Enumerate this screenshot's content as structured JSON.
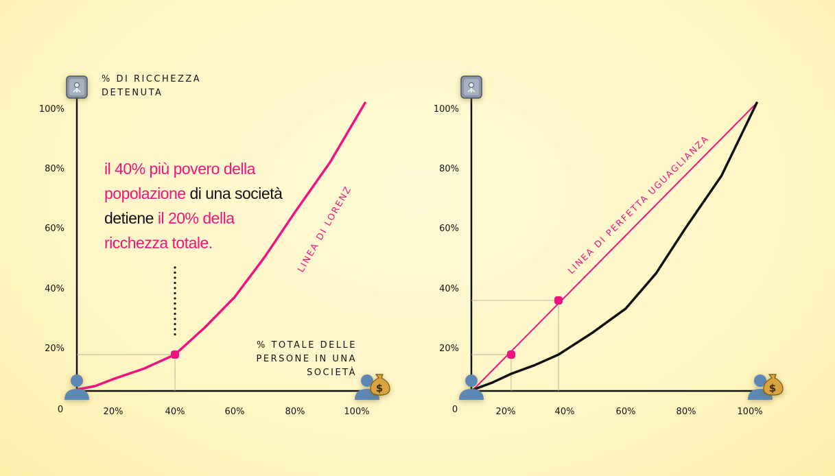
{
  "colors": {
    "accent": "#f0137f",
    "axis": "#111111",
    "guide": "#b8b39a",
    "background": "#fff6c6"
  },
  "icons": {
    "y_axis": "safe-icon",
    "x_axis_start": "person-icon",
    "x_axis_end": "person-with-money-bag-icon"
  },
  "chart_data": [
    {
      "type": "line",
      "ylabel": "% DI RICCHEZZA DETENUTA",
      "xlabel": "% TOTALE DELLE PERSONE IN UNA SOCIETÀ",
      "origin_label": "0",
      "x_ticks": [
        "20%",
        "40%",
        "60%",
        "80%",
        "100%"
      ],
      "y_ticks": [
        "20%",
        "40%",
        "60%",
        "80%",
        "100%"
      ],
      "xlim": [
        0,
        100
      ],
      "ylim": [
        0,
        100
      ],
      "series": [
        {
          "name": "LINEA DI LORENZ",
          "color": "#f0137f",
          "x": [
            0,
            10,
            20,
            30,
            40,
            50,
            60,
            70,
            80,
            90,
            100
          ],
          "y": [
            0,
            2,
            6,
            12,
            20,
            30,
            41,
            53,
            67,
            83,
            100
          ]
        }
      ],
      "highlight_point": {
        "x": 40,
        "y": 20
      },
      "annotation": {
        "parts": [
          {
            "text": "il 40% più povero della ",
            "highlight": true
          },
          {
            "text": "popolazione",
            "highlight": true
          },
          {
            "text": " di una società ",
            "highlight": false
          },
          {
            "text": "detiene ",
            "highlight": false
          },
          {
            "text": "il 20% della ",
            "highlight": true
          },
          {
            "text": "ricchezza totale.",
            "highlight": true
          }
        ]
      }
    },
    {
      "type": "line",
      "origin_label": "0",
      "x_ticks": [
        "20%",
        "40%",
        "60%",
        "80%",
        "100%"
      ],
      "y_ticks": [
        "20%",
        "40%",
        "60%",
        "80%",
        "100%"
      ],
      "xlim": [
        0,
        100
      ],
      "ylim": [
        0,
        100
      ],
      "series": [
        {
          "name": "LINEA DI PERFETTA UGUAGLIANZA",
          "color": "#f0137f",
          "x": [
            0,
            100
          ],
          "y": [
            0,
            100
          ]
        },
        {
          "color": "#111111",
          "x": [
            0,
            10,
            20,
            30,
            40,
            50,
            60,
            70,
            80,
            90,
            100
          ],
          "y": [
            0,
            4,
            9,
            14,
            20,
            28,
            37,
            48,
            62,
            79,
            100
          ]
        }
      ],
      "highlight_points": [
        {
          "x": 20,
          "y": 20
        },
        {
          "x": 40,
          "y": 40
        }
      ]
    }
  ]
}
